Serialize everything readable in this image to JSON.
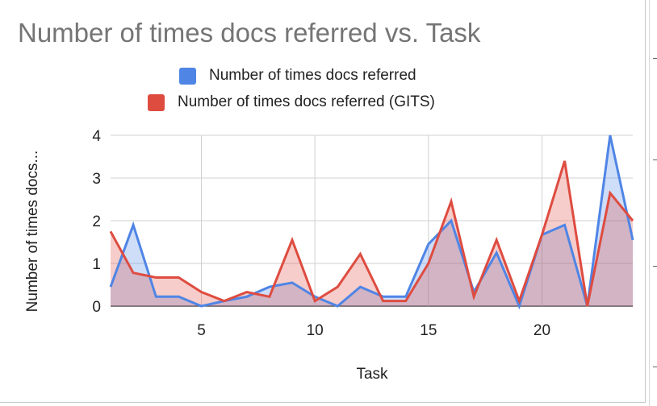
{
  "chart_data": {
    "type": "area",
    "title": "Number of times docs referred vs. Task",
    "xlabel": "Task",
    "ylabel": "Number of times docs...",
    "xlim": [
      1,
      24
    ],
    "ylim": [
      0,
      4
    ],
    "x_ticks": [
      5,
      10,
      15,
      20
    ],
    "y_ticks": [
      0,
      1,
      2,
      3,
      4
    ],
    "grid": true,
    "legend_position": "top",
    "x": [
      1,
      2,
      3,
      4,
      5,
      6,
      7,
      8,
      9,
      10,
      11,
      12,
      13,
      14,
      15,
      16,
      17,
      18,
      19,
      20,
      21,
      22,
      23,
      24
    ],
    "series": [
      {
        "name": "Number of times docs referred",
        "color": "#4f85e5",
        "values": [
          0.45,
          1.9,
          0.22,
          0.22,
          0.0,
          0.12,
          0.22,
          0.45,
          0.55,
          0.22,
          0.0,
          0.45,
          0.22,
          0.22,
          1.45,
          2.0,
          0.33,
          1.25,
          0.0,
          1.67,
          1.9,
          0.0,
          4.0,
          1.55
        ]
      },
      {
        "name": "Number of times docs referred (GITS)",
        "color": "#de4c40",
        "values": [
          1.75,
          0.78,
          0.67,
          0.67,
          0.33,
          0.12,
          0.33,
          0.22,
          1.55,
          0.12,
          0.45,
          1.22,
          0.12,
          0.12,
          1.0,
          2.45,
          0.22,
          1.55,
          0.12,
          1.67,
          3.4,
          0.0,
          2.65,
          2.0
        ]
      }
    ]
  },
  "edge_ticks": [
    "",
    "",
    "",
    "",
    "",
    ""
  ]
}
